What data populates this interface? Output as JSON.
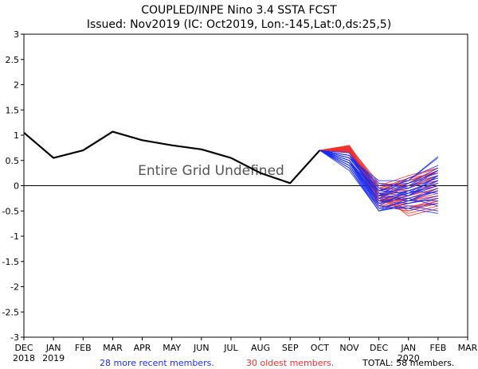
{
  "chart_data": {
    "type": "line",
    "title": "COUPLED/INPE Nino 3.4 SSTA FCST",
    "subtitle": "Issued: Nov2019 (IC: Oct2019, Lon:-145,Lat:0,ds:25,5)",
    "annotation": "Entire Grid Undefined",
    "xlabel": "",
    "ylabel": "",
    "ylim": [
      -3,
      3
    ],
    "yticks": [
      -3,
      -2.5,
      -2,
      -1.5,
      -1,
      -0.5,
      0,
      0.5,
      1,
      1.5,
      2,
      2.5,
      3
    ],
    "ytick_labels": [
      "-3",
      "-2.5",
      "-2",
      "-1.5",
      "-1",
      "-0.5",
      "0",
      "0.5",
      "1",
      "1.5",
      "2",
      "2.5",
      "3"
    ],
    "categories": [
      "DEC",
      "JAN",
      "FEB",
      "MAR",
      "APR",
      "MAY",
      "JUN",
      "JUL",
      "AUG",
      "SEP",
      "OCT",
      "NOV",
      "DEC",
      "JAN",
      "FEB",
      "MAR"
    ],
    "year_labels": [
      {
        "label": "2018",
        "index": 0
      },
      {
        "label": "2019",
        "index": 1
      },
      {
        "label": "2020",
        "index": 13
      }
    ],
    "observed": {
      "name": "observed",
      "color": "#000000",
      "x": [
        0,
        1,
        2,
        3,
        4,
        5,
        6,
        7,
        8,
        9,
        10
      ],
      "values": [
        1.05,
        0.55,
        0.7,
        1.07,
        0.9,
        0.8,
        0.72,
        0.55,
        0.25,
        0.05,
        0.7
      ]
    },
    "forecast_start_index": 10,
    "forecast_start_value": 0.7,
    "forecast_x": [
      11,
      12,
      13,
      14
    ],
    "recent_members": {
      "label": "28 more recent members.",
      "color": "#1c2ef0",
      "members": [
        [
          0.65,
          -0.1,
          0.1,
          0.55
        ],
        [
          0.55,
          0.1,
          0.1,
          0.58
        ],
        [
          0.6,
          -0.2,
          0.0,
          0.3
        ],
        [
          0.5,
          -0.3,
          -0.1,
          0.1
        ],
        [
          0.45,
          -0.35,
          -0.2,
          0.2
        ],
        [
          0.4,
          -0.45,
          -0.3,
          -0.1
        ],
        [
          0.35,
          -0.5,
          -0.35,
          -0.2
        ],
        [
          0.5,
          -0.25,
          -0.15,
          0.0
        ],
        [
          0.55,
          -0.15,
          -0.05,
          0.15
        ],
        [
          0.45,
          -0.4,
          -0.45,
          -0.55
        ],
        [
          0.6,
          0.0,
          0.05,
          0.25
        ],
        [
          0.35,
          -0.5,
          -0.4,
          -0.5
        ],
        [
          0.5,
          -0.3,
          -0.25,
          -0.1
        ],
        [
          0.4,
          -0.35,
          -0.15,
          0.05
        ],
        [
          0.55,
          -0.2,
          -0.1,
          0.1
        ],
        [
          0.45,
          -0.1,
          0.0,
          0.2
        ],
        [
          0.5,
          -0.45,
          -0.3,
          -0.3
        ],
        [
          0.6,
          -0.05,
          -0.2,
          0.0
        ],
        [
          0.3,
          -0.5,
          -0.25,
          -0.4
        ],
        [
          0.5,
          -0.2,
          0.15,
          0.4
        ],
        [
          0.45,
          -0.3,
          -0.35,
          -0.25
        ],
        [
          0.55,
          0.05,
          -0.05,
          0.3
        ],
        [
          0.4,
          -0.4,
          -0.1,
          -0.15
        ],
        [
          0.6,
          -0.15,
          -0.3,
          -0.05
        ],
        [
          0.5,
          -0.35,
          -0.2,
          0.1
        ],
        [
          0.45,
          -0.25,
          0.05,
          0.35
        ],
        [
          0.35,
          -0.45,
          -0.45,
          -0.35
        ],
        [
          0.55,
          -0.1,
          -0.15,
          0.2
        ]
      ]
    },
    "oldest_members": {
      "label": "30 oldest members.",
      "color": "#f03030",
      "members": [
        [
          0.78,
          0.0,
          0.2,
          0.35
        ],
        [
          0.75,
          -0.1,
          0.15,
          0.25
        ],
        [
          0.8,
          -0.05,
          0.1,
          0.3
        ],
        [
          0.7,
          -0.2,
          -0.1,
          0.05
        ],
        [
          0.72,
          -0.3,
          -0.3,
          -0.1
        ],
        [
          0.68,
          -0.35,
          -0.45,
          -0.25
        ],
        [
          0.76,
          -0.25,
          -0.55,
          -0.4
        ],
        [
          0.74,
          -0.15,
          -0.6,
          -0.45
        ],
        [
          0.7,
          -0.4,
          -0.5,
          -0.3
        ],
        [
          0.65,
          -0.3,
          -0.2,
          -0.05
        ],
        [
          0.78,
          -0.2,
          0.05,
          0.2
        ],
        [
          0.73,
          -0.1,
          -0.15,
          0.0
        ],
        [
          0.69,
          -0.25,
          -0.35,
          -0.2
        ],
        [
          0.77,
          0.05,
          0.0,
          0.15
        ],
        [
          0.71,
          -0.3,
          -0.4,
          -0.35
        ],
        [
          0.75,
          -0.2,
          -0.3,
          -0.15
        ],
        [
          0.7,
          -0.1,
          0.1,
          0.25
        ],
        [
          0.66,
          -0.35,
          -0.25,
          -0.1
        ],
        [
          0.79,
          -0.15,
          -0.2,
          0.05
        ],
        [
          0.72,
          -0.25,
          0.0,
          0.1
        ],
        [
          0.74,
          -0.05,
          -0.1,
          0.1
        ],
        [
          0.68,
          -0.3,
          -0.45,
          -0.3
        ],
        [
          0.76,
          -0.2,
          -0.05,
          0.2
        ],
        [
          0.7,
          -0.4,
          -0.35,
          -0.25
        ],
        [
          0.73,
          -0.1,
          0.05,
          0.3
        ],
        [
          0.67,
          -0.3,
          -0.15,
          0.0
        ],
        [
          0.78,
          -0.15,
          -0.5,
          -0.35
        ],
        [
          0.71,
          -0.2,
          -0.25,
          -0.05
        ],
        [
          0.75,
          -0.05,
          0.15,
          0.35
        ],
        [
          0.69,
          -0.25,
          -0.3,
          -0.2
        ]
      ]
    },
    "total_label": "TOTAL: 58 members."
  }
}
